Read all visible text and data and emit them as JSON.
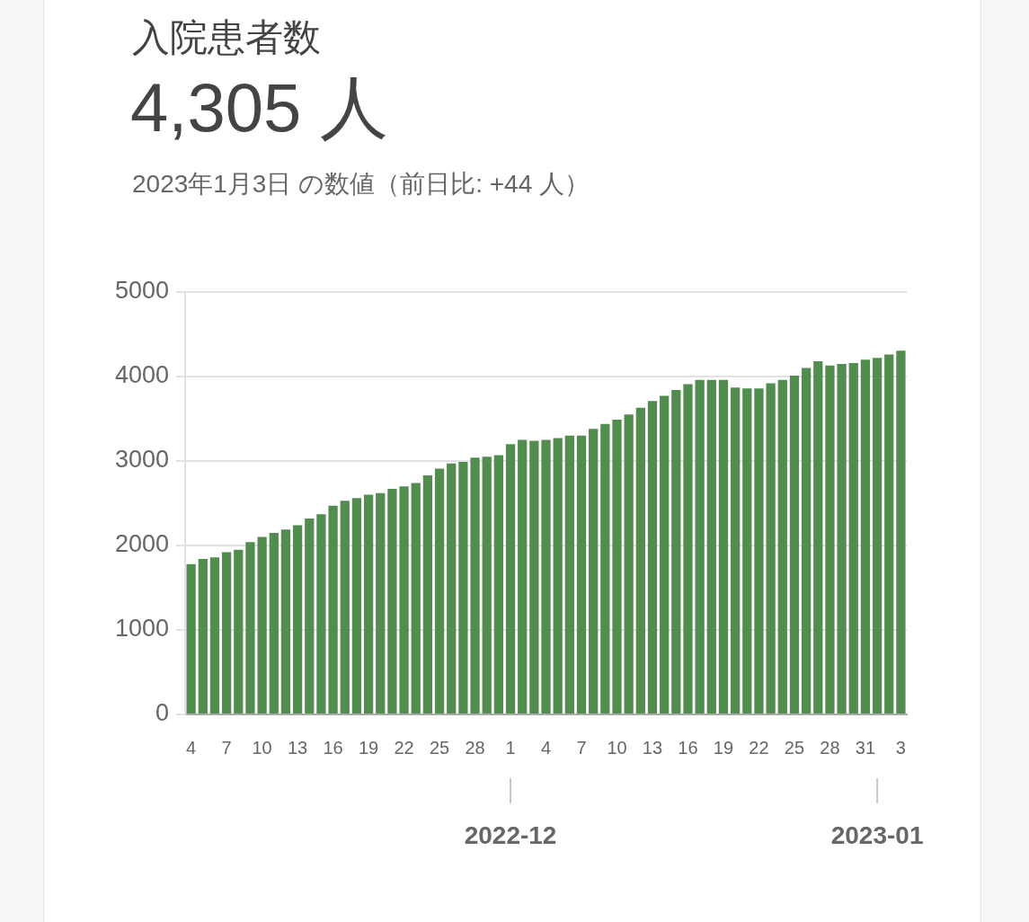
{
  "chart_data": {
    "type": "bar",
    "title": "入院患者数",
    "subtitle": "4,305 人",
    "annotations": [
      "2023年1月3日 の数値（前日比: +44 人）",
      {
        "text": "2022-12",
        "x": "2022-12-01"
      },
      {
        "text": "2023-01",
        "x": "2023-01-01"
      }
    ],
    "x": [
      "2022-11-04",
      "2022-11-05",
      "2022-11-06",
      "2022-11-07",
      "2022-11-08",
      "2022-11-09",
      "2022-11-10",
      "2022-11-11",
      "2022-11-12",
      "2022-11-13",
      "2022-11-14",
      "2022-11-15",
      "2022-11-16",
      "2022-11-17",
      "2022-11-18",
      "2022-11-19",
      "2022-11-20",
      "2022-11-21",
      "2022-11-22",
      "2022-11-23",
      "2022-11-24",
      "2022-11-25",
      "2022-11-26",
      "2022-11-27",
      "2022-11-28",
      "2022-11-29",
      "2022-11-30",
      "2022-12-01",
      "2022-12-02",
      "2022-12-03",
      "2022-12-04",
      "2022-12-05",
      "2022-12-06",
      "2022-12-07",
      "2022-12-08",
      "2022-12-09",
      "2022-12-10",
      "2022-12-11",
      "2022-12-12",
      "2022-12-13",
      "2022-12-14",
      "2022-12-15",
      "2022-12-16",
      "2022-12-17",
      "2022-12-18",
      "2022-12-19",
      "2022-12-20",
      "2022-12-21",
      "2022-12-22",
      "2022-12-23",
      "2022-12-24",
      "2022-12-25",
      "2022-12-26",
      "2022-12-27",
      "2022-12-28",
      "2022-12-29",
      "2022-12-30",
      "2022-12-31",
      "2023-01-01",
      "2023-01-02",
      "2023-01-03"
    ],
    "values": [
      1780,
      1840,
      1860,
      1920,
      1950,
      2040,
      2100,
      2150,
      2190,
      2240,
      2320,
      2370,
      2470,
      2530,
      2560,
      2600,
      2620,
      2670,
      2700,
      2740,
      2830,
      2910,
      2970,
      2990,
      3040,
      3050,
      3070,
      3200,
      3250,
      3240,
      3250,
      3270,
      3300,
      3300,
      3380,
      3440,
      3490,
      3550,
      3630,
      3710,
      3770,
      3840,
      3910,
      3960,
      3960,
      3960,
      3870,
      3860,
      3860,
      3920,
      3960,
      4010,
      4100,
      4180,
      4130,
      4150,
      4160,
      4200,
      4220,
      4261,
      4305
    ],
    "color": "#528c4f",
    "xlim": [
      "2022-11-03T12:00",
      "2023-01-03T12:00"
    ],
    "xticks": [
      {
        "value": "2022-11-04",
        "label": "4"
      },
      {
        "value": "2022-11-07",
        "label": "7"
      },
      {
        "value": "2022-11-10",
        "label": "10"
      },
      {
        "value": "2022-11-13",
        "label": "13"
      },
      {
        "value": "2022-11-16",
        "label": "16"
      },
      {
        "value": "2022-11-19",
        "label": "19"
      },
      {
        "value": "2022-11-22",
        "label": "22"
      },
      {
        "value": "2022-11-25",
        "label": "25"
      },
      {
        "value": "2022-11-28",
        "label": "28"
      },
      {
        "value": "2022-12-01",
        "label": "1"
      },
      {
        "value": "2022-12-04",
        "label": "4"
      },
      {
        "value": "2022-12-07",
        "label": "7"
      },
      {
        "value": "2022-12-10",
        "label": "10"
      },
      {
        "value": "2022-12-13",
        "label": "13"
      },
      {
        "value": "2022-12-16",
        "label": "16"
      },
      {
        "value": "2022-12-19",
        "label": "19"
      },
      {
        "value": "2022-12-22",
        "label": "22"
      },
      {
        "value": "2022-12-25",
        "label": "25"
      },
      {
        "value": "2022-12-28",
        "label": "28"
      },
      {
        "value": "2022-12-31",
        "label": "31"
      },
      {
        "value": "2023-01-03",
        "label": "3"
      }
    ],
    "ylim": [
      0,
      5000
    ],
    "yticks": [
      0,
      1000,
      2000,
      3000,
      4000,
      5000
    ],
    "grid": "y",
    "legend": false
  }
}
